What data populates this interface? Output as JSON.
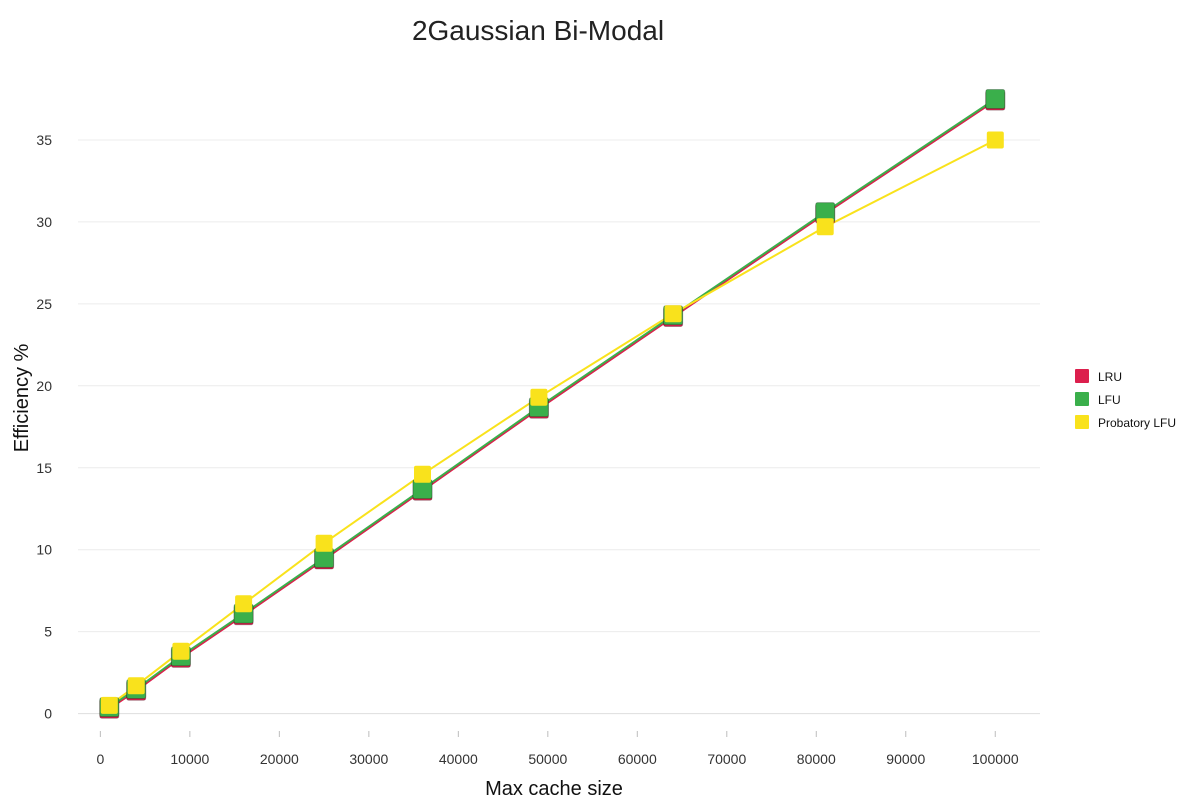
{
  "chart_data": {
    "type": "line",
    "title": "2Gaussian Bi-Modal",
    "xlabel": "Max cache size",
    "ylabel": "Efficiency %",
    "xlim": [
      -2500,
      105000
    ],
    "ylim": [
      -1,
      40
    ],
    "x_ticks": [
      0,
      10000,
      20000,
      30000,
      40000,
      50000,
      60000,
      70000,
      80000,
      90000,
      100000
    ],
    "y_ticks": [
      0,
      5,
      10,
      15,
      20,
      25,
      30,
      35
    ],
    "grid": "horizontal",
    "legend_position": "right",
    "series": [
      {
        "name": "LRU",
        "color": "#dc1f4d",
        "x": [
          1000,
          4000,
          9000,
          16000,
          25000,
          36000,
          49000,
          64000,
          81000,
          100000
        ],
        "y": [
          0.3,
          1.4,
          3.4,
          6.0,
          9.4,
          13.6,
          18.6,
          24.2,
          30.5,
          37.4
        ]
      },
      {
        "name": "LFU",
        "color": "#3aaf4b",
        "x": [
          1000,
          4000,
          9000,
          16000,
          25000,
          36000,
          49000,
          64000,
          81000,
          100000
        ],
        "y": [
          0.4,
          1.5,
          3.5,
          6.1,
          9.5,
          13.7,
          18.7,
          24.3,
          30.6,
          37.5
        ]
      },
      {
        "name": "Probatory LFU",
        "color": "#f9e21c",
        "x": [
          1000,
          4000,
          9000,
          16000,
          25000,
          36000,
          49000,
          64000,
          81000,
          100000
        ],
        "y": [
          0.5,
          1.7,
          3.8,
          6.7,
          10.4,
          14.6,
          19.3,
          24.4,
          29.7,
          35.0
        ]
      }
    ]
  }
}
